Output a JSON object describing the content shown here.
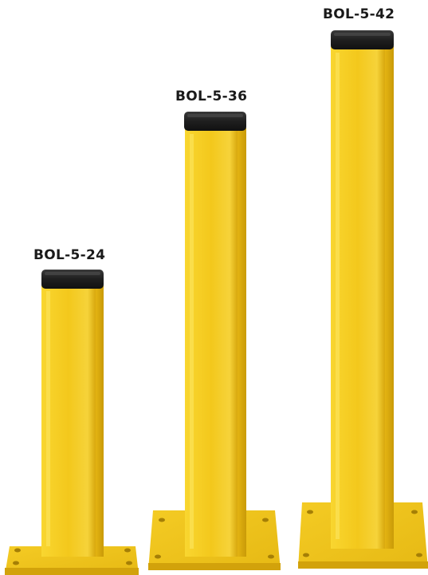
{
  "bollards": [
    {
      "model": "BOL-5-24"
    },
    {
      "model": "BOL-5-36"
    },
    {
      "model": "BOL-5-42"
    }
  ],
  "colors": {
    "post_yellow": "#f3c81c",
    "post_shadow": "#d7a90c",
    "post_highlight": "#fde766",
    "cap_black": "#1f1f1f",
    "base_yellow": "#f0c21a",
    "label_text": "#1a1a1a"
  }
}
